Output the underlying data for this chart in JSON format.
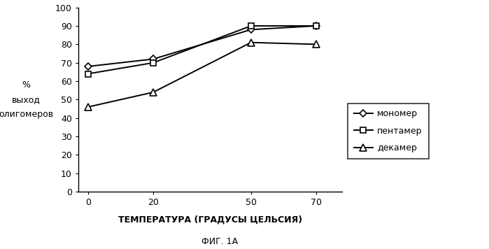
{
  "x": [
    0,
    20,
    50,
    70
  ],
  "monomer": [
    68,
    72,
    88,
    90
  ],
  "pentamer": [
    64,
    70,
    90,
    90
  ],
  "decamer": [
    46,
    54,
    81,
    80
  ],
  "xlabel": "ТЕМПЕРАТУРА (ГРАДУСЫ ЦЕЛЬСИЯ)",
  "ylabel": "%\nвыход\nолигомеров",
  "caption": "ФИГ. 1А",
  "legend_labels": [
    "мономер",
    "пентамер",
    "декамер"
  ],
  "xlim": [
    -3,
    78
  ],
  "ylim": [
    0,
    100
  ],
  "yticks": [
    0,
    10,
    20,
    30,
    40,
    50,
    60,
    70,
    80,
    90,
    100
  ],
  "xticks": [
    0,
    20,
    50,
    70
  ],
  "line_color": "black",
  "bg_color": "white"
}
